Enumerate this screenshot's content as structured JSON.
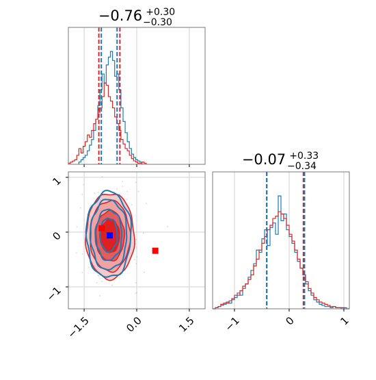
{
  "chart_data": [
    {
      "type": "histogram",
      "panel": "top-left marginal (param 1)",
      "title": {
        "value": "−0.76",
        "upper": "+0.30",
        "lower": "−0.30"
      },
      "xlim": [
        -1.95,
        1.95
      ],
      "quantiles": {
        "red": [
          -1.08,
          -0.48
        ],
        "blue": [
          -1.01,
          -0.56
        ]
      },
      "series": [
        {
          "color": "#1f77b4",
          "bin_edges_start": -1.65,
          "bin_width": 0.06,
          "values": [
            0.02,
            0.04,
            0.06,
            0.08,
            0.12,
            0.17,
            0.22,
            0.3,
            0.4,
            0.52,
            0.66,
            0.8,
            0.72,
            0.88,
            0.95,
            1.0,
            0.92,
            0.78,
            0.8,
            0.66,
            0.5,
            0.38,
            0.28,
            0.2,
            0.14,
            0.09,
            0.06,
            0.04,
            0.03,
            0.02
          ]
        },
        {
          "color": "#d62728",
          "bin_edges_start": -1.95,
          "bin_width": 0.06,
          "values": [
            0.01,
            0.02,
            0.03,
            0.04,
            0.08,
            0.14,
            0.1,
            0.16,
            0.2,
            0.26,
            0.24,
            0.3,
            0.36,
            0.4,
            0.46,
            0.5,
            0.6,
            0.72,
            0.7,
            0.6,
            0.56,
            0.5,
            0.42,
            0.36,
            0.3,
            0.22,
            0.18,
            0.14,
            0.12,
            0.08,
            0.05,
            0.03,
            0.02,
            0.01,
            0.01,
            0.02,
            0.01
          ]
        }
      ]
    },
    {
      "type": "contour",
      "panel": "bottom-left joint (param 1 vs param 2)",
      "xlim": [
        -1.95,
        1.95
      ],
      "ylim": [
        -1.4,
        1.1
      ],
      "xticks": [
        "−1.5",
        "0.0",
        "1.5"
      ],
      "yticks": [
        "−1",
        "0",
        "1"
      ],
      "contours": {
        "red": {
          "center": [
            -0.76,
            -0.07
          ],
          "sigma": [
            0.3,
            0.34
          ]
        },
        "blue": {
          "center": [
            -0.8,
            -0.05
          ],
          "sigma": [
            0.26,
            0.32
          ]
        }
      },
      "markers": [
        {
          "color": "#ff0000",
          "x": -1.0,
          "y": 0.07
        },
        {
          "color": "#0000ff",
          "x": -0.77,
          "y": -0.06
        },
        {
          "color": "#ff0000",
          "x": 0.53,
          "y": -0.34
        }
      ]
    },
    {
      "type": "histogram",
      "panel": "bottom-right marginal (param 2)",
      "title": {
        "value": "−0.07",
        "upper": "+0.33",
        "lower": "−0.34"
      },
      "xlim": [
        -1.4,
        1.1
      ],
      "xticks": [
        "−1",
        "0",
        "1"
      ],
      "quantiles": {
        "red": [
          -0.41,
          0.26
        ],
        "blue": [
          -0.41,
          0.28
        ]
      },
      "series": [
        {
          "color": "#1f77b4",
          "bin_edges_start": -1.4,
          "bin_width": 0.05,
          "values": [
            0.0,
            0.01,
            0.02,
            0.03,
            0.04,
            0.06,
            0.05,
            0.08,
            0.1,
            0.14,
            0.12,
            0.18,
            0.22,
            0.28,
            0.34,
            0.4,
            0.52,
            0.5,
            0.62,
            0.7,
            0.56,
            0.72,
            0.76,
            0.66,
            1.0,
            0.78,
            0.84,
            0.7,
            0.64,
            0.58,
            0.5,
            0.42,
            0.36,
            0.3,
            0.22,
            0.16,
            0.12,
            0.08,
            0.06,
            0.04,
            0.03,
            0.02,
            0.02,
            0.01,
            0.02,
            0.01,
            0.01,
            0.0,
            0.01,
            0.0
          ]
        },
        {
          "color": "#d62728",
          "bin_edges_start": -1.4,
          "bin_width": 0.05,
          "values": [
            0.0,
            0.01,
            0.02,
            0.04,
            0.05,
            0.05,
            0.07,
            0.09,
            0.12,
            0.12,
            0.16,
            0.2,
            0.22,
            0.26,
            0.3,
            0.38,
            0.44,
            0.52,
            0.58,
            0.64,
            0.7,
            0.74,
            0.8,
            0.82,
            0.86,
            0.84,
            0.8,
            0.74,
            0.66,
            0.6,
            0.52,
            0.44,
            0.36,
            0.3,
            0.24,
            0.18,
            0.14,
            0.1,
            0.08,
            0.06,
            0.05,
            0.04,
            0.03,
            0.02,
            0.02,
            0.01,
            0.01,
            0.01,
            0.0,
            0.0
          ]
        }
      ]
    }
  ]
}
